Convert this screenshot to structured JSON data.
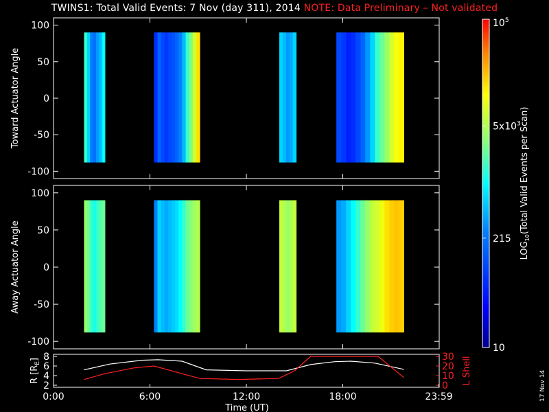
{
  "title": {
    "main": "TWINS1: Total Valid Events:  7 Nov (day 311), 2014",
    "note": "NOTE: Data Preliminary – Not validated"
  },
  "colors": {
    "background": "#000000",
    "axis": "#ffffff",
    "note": "#ff2020",
    "r_line": "#ffffff",
    "l_shell_line": "#ff2020"
  },
  "datestamp": "17 Nov 14",
  "chart_data": [
    {
      "type": "heatmap",
      "ylabel": "Toward Actuator Angle",
      "ylim": [
        -110,
        110
      ],
      "yticks": [
        "100",
        "50",
        "0",
        "-50",
        "-100"
      ],
      "ytick_values": [
        100,
        50,
        0,
        -50,
        -100
      ],
      "xlim_hours": [
        0,
        24
      ],
      "colorbar_scale": "log",
      "data_extent_deg": [
        -88,
        90
      ],
      "segments": [
        {
          "start_h": 1.9,
          "end_h": 3.2,
          "level": [
            0.55,
            0.45,
            0.35,
            0.32,
            0.38,
            0.42,
            0.5
          ]
        },
        {
          "start_h": 6.25,
          "end_h": 9.1,
          "level": [
            0.2,
            0.3,
            0.25,
            0.22,
            0.25,
            0.27,
            0.3,
            0.35,
            0.42,
            0.55,
            0.62,
            0.72,
            0.8
          ]
        },
        {
          "start_h": 14.05,
          "end_h": 15.1,
          "level": [
            0.45,
            0.42,
            0.38,
            0.4,
            0.45
          ]
        },
        {
          "start_h": 17.6,
          "end_h": 21.8,
          "level": [
            0.25,
            0.22,
            0.18,
            0.2,
            0.25,
            0.3,
            0.38,
            0.45,
            0.55,
            0.6,
            0.65,
            0.72,
            0.76,
            0.78
          ]
        }
      ]
    },
    {
      "type": "heatmap",
      "ylabel": "Away Actuator Angle",
      "ylim": [
        -110,
        110
      ],
      "yticks": [
        "100",
        "50",
        "0",
        "-50",
        "-100"
      ],
      "ytick_values": [
        100,
        50,
        0,
        -50,
        -100
      ],
      "xlim_hours": [
        0,
        24
      ],
      "colorbar_scale": "log",
      "data_extent_deg": [
        -88,
        90
      ],
      "segments": [
        {
          "start_h": 1.9,
          "end_h": 3.2,
          "level": [
            0.65,
            0.6,
            0.55,
            0.52,
            0.55,
            0.58,
            0.6
          ]
        },
        {
          "start_h": 6.25,
          "end_h": 9.1,
          "level": [
            0.35,
            0.45,
            0.42,
            0.4,
            0.42,
            0.44,
            0.46,
            0.5,
            0.55,
            0.6,
            0.63,
            0.66,
            0.68
          ]
        },
        {
          "start_h": 14.05,
          "end_h": 15.1,
          "level": [
            0.7,
            0.68,
            0.65,
            0.67,
            0.7
          ]
        },
        {
          "start_h": 17.6,
          "end_h": 21.8,
          "level": [
            0.38,
            0.4,
            0.45,
            0.5,
            0.55,
            0.6,
            0.65,
            0.7,
            0.72,
            0.75,
            0.8,
            0.82,
            0.83,
            0.82
          ]
        }
      ]
    },
    {
      "type": "line",
      "ylabel": "R [R",
      "ylabel_sub": "E",
      "ylabel_close": "]",
      "ylim": [
        2,
        8
      ],
      "yticks": [
        "8",
        "6",
        "4",
        "2"
      ],
      "ytick_values": [
        8,
        6,
        4,
        2
      ],
      "y2label": "L Shell",
      "y2lim": [
        0,
        30
      ],
      "y2ticks": [
        "30",
        "20",
        "10",
        "0"
      ],
      "y2tick_values": [
        30,
        20,
        10,
        0
      ],
      "xlabel": "Time (UT)",
      "xticks": [
        "0:00",
        "6:00",
        "12:00",
        "18:00",
        "23:59"
      ],
      "xtick_values": [
        0,
        6,
        12,
        18,
        23.98
      ],
      "series": [
        {
          "axis": "left",
          "x": [
            1.9,
            3.5,
            5.5,
            6.5,
            8.0,
            9.5,
            12.0,
            14.5,
            16.0,
            17.5,
            18.5,
            20.0,
            21.8
          ],
          "y": [
            5.2,
            6.4,
            7.2,
            7.3,
            7.0,
            5.2,
            5.0,
            5.0,
            6.3,
            6.9,
            7.0,
            6.6,
            5.3
          ]
        },
        {
          "axis": "right",
          "x": [
            1.9,
            3.2,
            5.0,
            6.25,
            9.1,
            11.5,
            14.0,
            15.0,
            16.0,
            20.2,
            21.8
          ],
          "y": [
            6,
            12,
            18,
            20,
            7,
            6,
            7,
            15,
            30,
            30,
            8
          ]
        }
      ]
    }
  ],
  "colorbar": {
    "label_prefix": "LOG",
    "label_sub": "10",
    "label_rest": "(Total Valid Events per Scan)",
    "ticks": [
      {
        "value": 10,
        "text": "10"
      },
      {
        "value": 215,
        "text": "215"
      },
      {
        "value": 5000,
        "text": "5x10",
        "sup": "3"
      },
      {
        "value": 100000,
        "text": "10",
        "sup": "5"
      }
    ],
    "range": [
      10,
      100000
    ]
  }
}
